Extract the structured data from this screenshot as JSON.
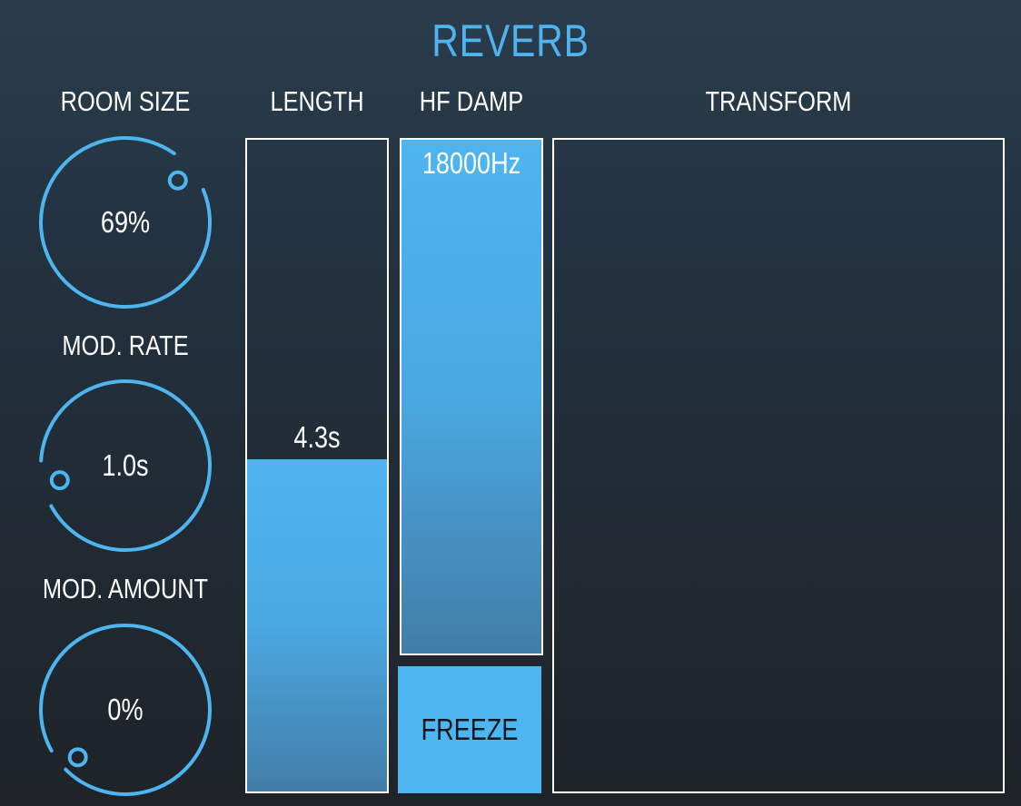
{
  "title": "REVERB",
  "accent_color": "#4db5f0",
  "knobs": [
    {
      "label": "ROOM SIZE",
      "value": "69%",
      "normalized": 0.69
    },
    {
      "label": "MOD. RATE",
      "value": "1.0s",
      "normalized": 0.12
    },
    {
      "label": "MOD. AMOUNT",
      "value": "0%",
      "normalized": 0.0
    }
  ],
  "length": {
    "label": "LENGTH",
    "value": "4.3s",
    "level": 0.51
  },
  "hf_damp": {
    "label": "HF DAMP",
    "value": "18000Hz",
    "level": 1.0
  },
  "freeze": {
    "label": "FREEZE"
  },
  "transform": {
    "label": "TRANSFORM"
  }
}
